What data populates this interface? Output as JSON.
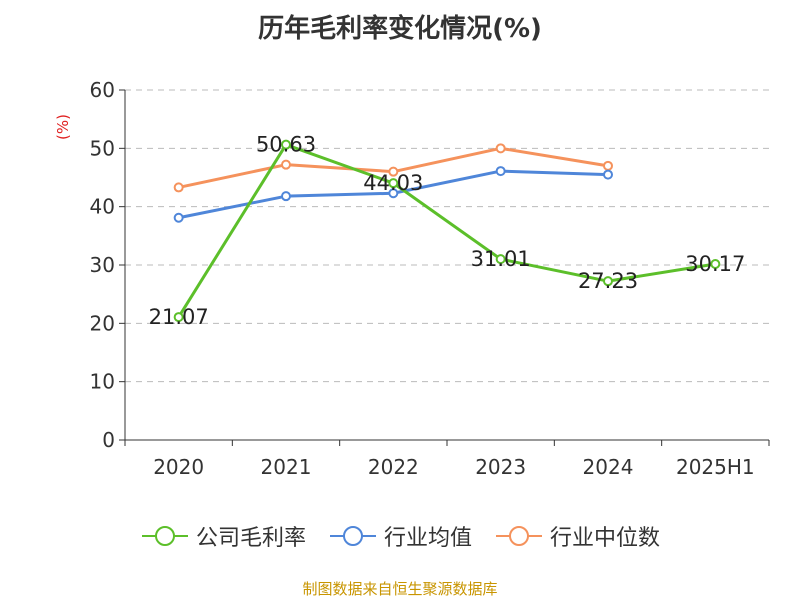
{
  "title": "历年毛利率变化情况(%)",
  "source": "制图数据来自恒生聚源数据库",
  "chart_data": {
    "type": "line",
    "title": "历年毛利率变化情况(%)",
    "ylabel": "(%)",
    "xlabel": "",
    "categories": [
      "2020",
      "2021",
      "2022",
      "2023",
      "2024",
      "2025H1"
    ],
    "ylim": [
      0,
      60
    ],
    "yticks": [
      0,
      10,
      20,
      30,
      40,
      50,
      60
    ],
    "grid": true,
    "legend_position": "bottom",
    "series": [
      {
        "name": "公司毛利率",
        "color": "#5cbf2a",
        "values": [
          21.07,
          50.63,
          44.03,
          31.01,
          27.23,
          30.17
        ],
        "show_labels": true
      },
      {
        "name": "行业均值",
        "color": "#4f86d9",
        "values": [
          38.1,
          41.8,
          42.3,
          46.1,
          45.5,
          null
        ],
        "show_labels": false
      },
      {
        "name": "行业中位数",
        "color": "#f5925c",
        "values": [
          43.3,
          47.2,
          46.0,
          50.0,
          47.0,
          null
        ],
        "show_labels": false
      }
    ]
  }
}
